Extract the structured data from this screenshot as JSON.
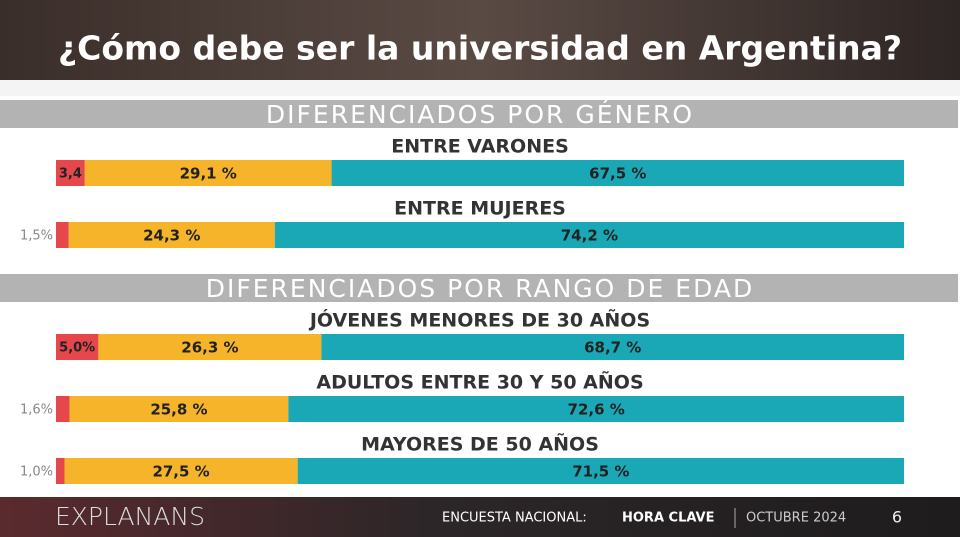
{
  "title": "¿Cómo debe ser la universidad en Argentina?",
  "chart_data": [
    {
      "type": "bar",
      "orientation": "horizontal",
      "stacked": true,
      "title": "DIFERENCIADOS POR GÉNERO",
      "categories": [
        "ENTRE VARONES",
        "ENTRE MUJERES"
      ],
      "xlim": [
        0,
        100
      ],
      "series": [
        {
          "color": "#e5474c",
          "values": [
            3.4,
            1.5
          ],
          "value_labels": [
            "3,4",
            "1,5%"
          ]
        },
        {
          "color": "#f6b42a",
          "values": [
            29.1,
            24.3
          ],
          "value_labels": [
            "29,1 %",
            "24,3 %"
          ]
        },
        {
          "color": "#1aa7b6",
          "values": [
            67.5,
            74.2
          ],
          "value_labels": [
            "67,5 %",
            "74,2 %"
          ]
        }
      ]
    },
    {
      "type": "bar",
      "orientation": "horizontal",
      "stacked": true,
      "title": "DIFERENCIADOS POR RANGO DE EDAD",
      "categories": [
        "JÓVENES MENORES DE 30 AÑOS",
        "ADULTOS ENTRE 30 Y 50 AÑOS",
        "MAYORES DE 50 AÑOS"
      ],
      "xlim": [
        0,
        100
      ],
      "series": [
        {
          "color": "#e5474c",
          "values": [
            5.0,
            1.6,
            1.0
          ],
          "value_labels": [
            "5,0%",
            "1,6%",
            "1,0%"
          ]
        },
        {
          "color": "#f6b42a",
          "values": [
            26.3,
            25.8,
            27.5
          ],
          "value_labels": [
            "26,3 %",
            "25,8 %",
            "27,5 %"
          ]
        },
        {
          "color": "#1aa7b6",
          "values": [
            68.7,
            72.6,
            71.5
          ],
          "value_labels": [
            "68,7 %",
            "72,6 %",
            "71,5 %"
          ]
        }
      ]
    }
  ],
  "footer": {
    "brand": "EXPLANANS",
    "survey": "ENCUESTA NACIONAL:",
    "survey_name": "HORA CLAVE",
    "date": "OCTUBRE 2024",
    "page": "6"
  }
}
